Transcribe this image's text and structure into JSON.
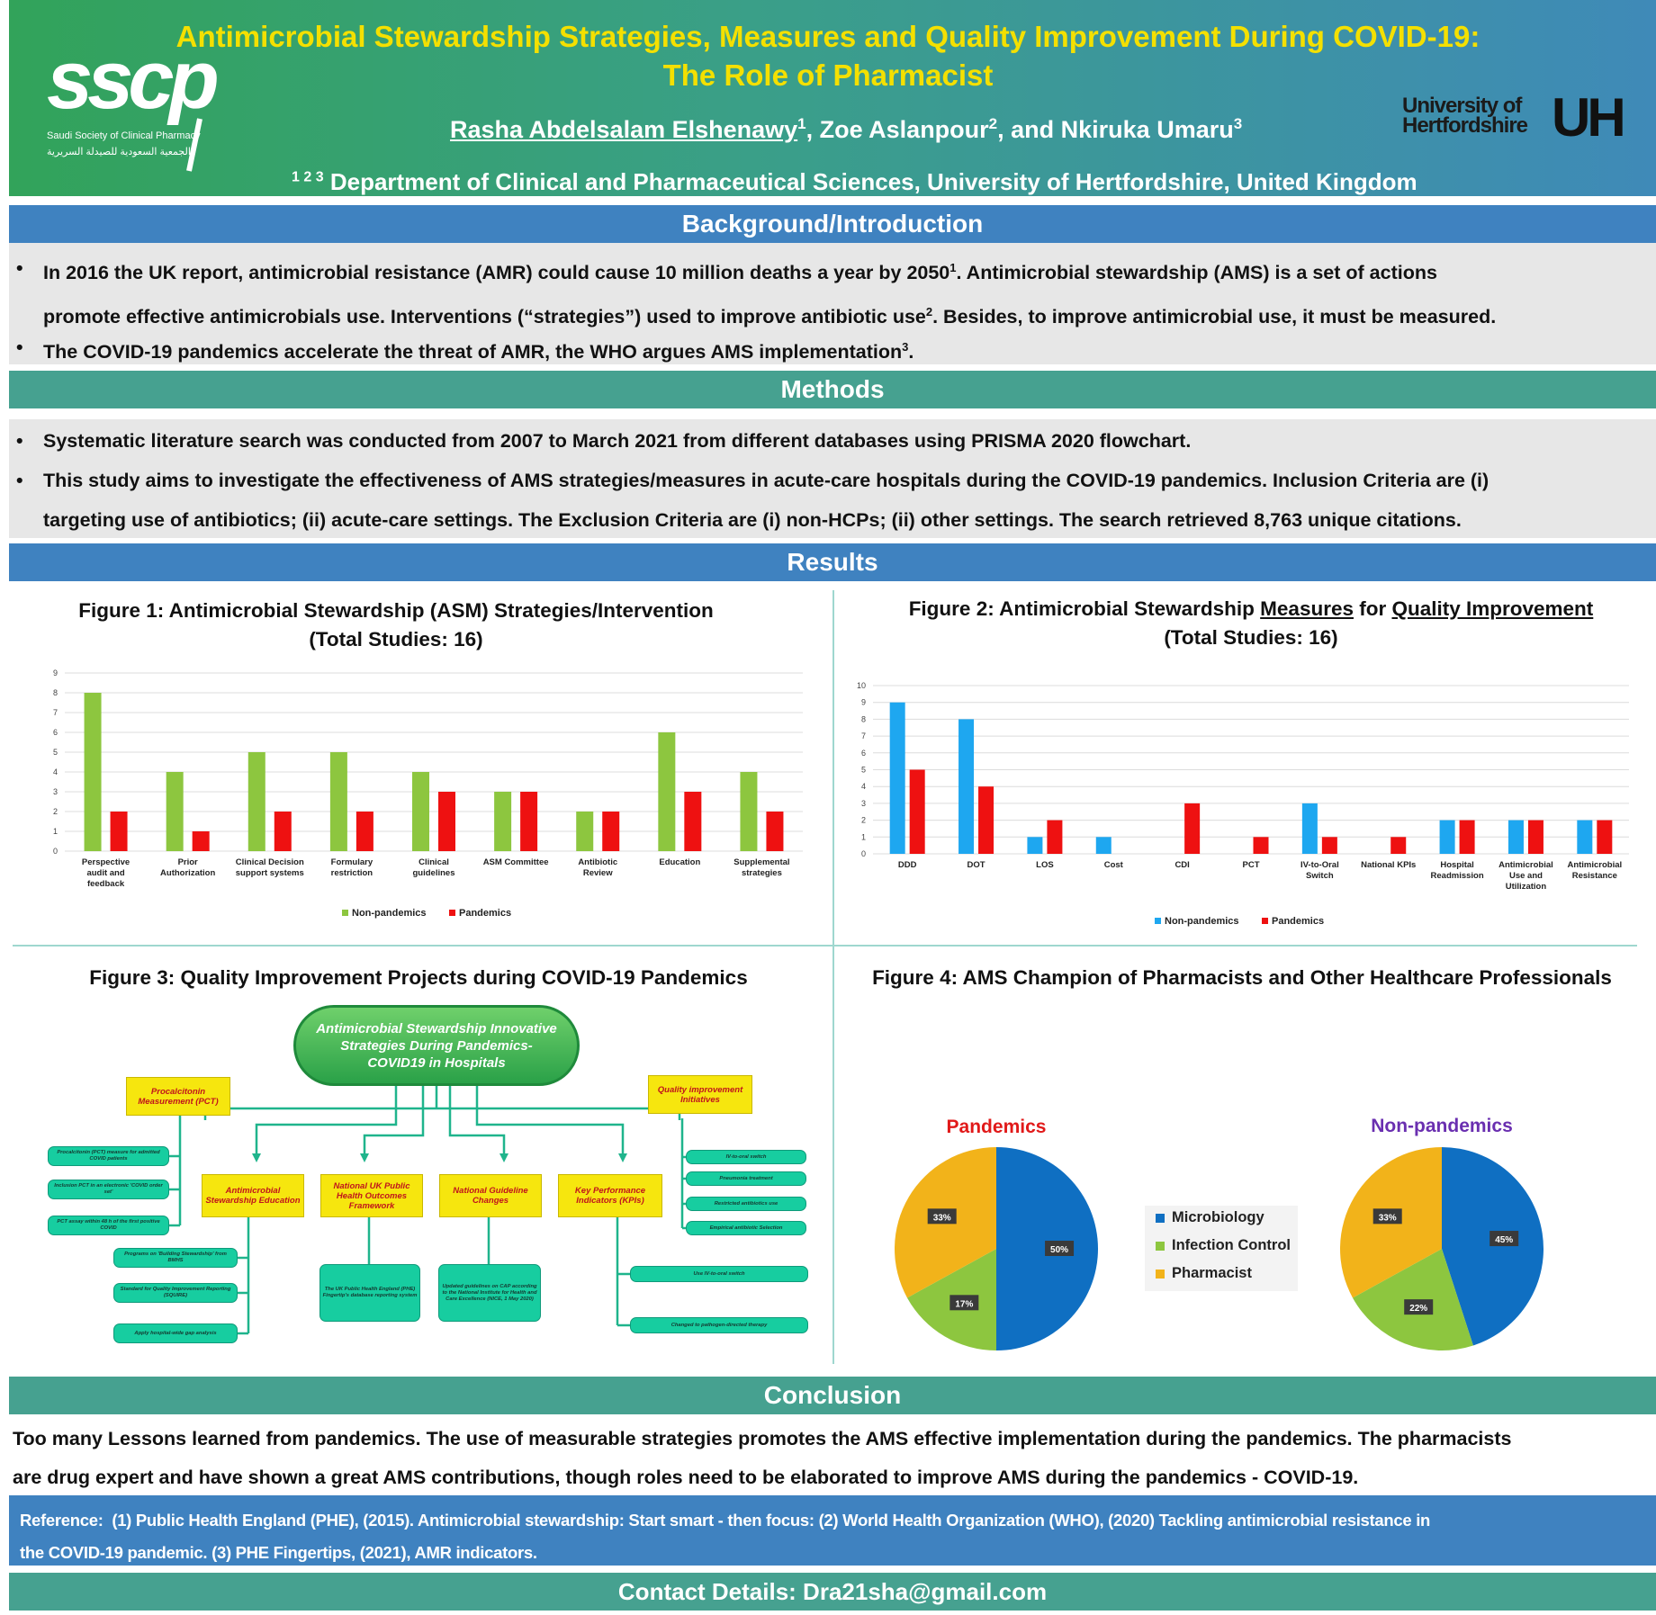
{
  "header": {
    "title_line1": "Antimicrobial Stewardship Strategies, Measures and Quality Improvement During COVID-19:",
    "title_line2": "The Role of Pharmacist",
    "author1": "Rasha Abdelsalam Elshenawy",
    "author1_sup": "1",
    "author2": "Zoe Aslanpour",
    "author2_sup": "2",
    "author3_prefix": ", and Nkiruka Umaru",
    "author3_sup": "3",
    "affiliation_sup": "1 2 3",
    "affiliation": "Department of Clinical and Pharmaceutical Sciences, University of Hertfordshire, United Kingdom",
    "logo_left_text": "sscp",
    "logo_left_sub": "Saudi Society of Clinical Pharmacy",
    "logo_left_arabic": "الجمعية السعودية للصيدلة السريرية",
    "logo_right_line1": "University of",
    "logo_right_line2": "Hertfordshire",
    "logo_right_mark": "UH",
    "colors": {
      "title": "#f4e000",
      "header_start": "#32a35a",
      "header_end": "#3f8ab8"
    }
  },
  "background": {
    "heading": "Background/Introduction",
    "bullets": [
      {
        "line1": "In 2016 the UK report, antimicrobial resistance (AMR) could cause 10 million deaths a year by 2050",
        "sup": "1",
        "line1_tail": ".  Antimicrobial stewardship (AMS) is a set of actions",
        "line2": "promote effective antimicrobials use. Interventions (“strategies”) used to improve antibiotic use",
        "sup2": "2",
        "line2_tail": ". Besides, to improve antimicrobial use, it must be measured."
      },
      {
        "line1": "The COVID-19 pandemics accelerate the threat of AMR, the WHO argues AMS implementation",
        "sup": "3",
        "line1_tail": "."
      }
    ]
  },
  "methods": {
    "heading": "Methods",
    "bullet1": "Systematic literature search was conducted from 2007 to March 2021 from different databases using PRISMA 2020 flowchart.",
    "bullet2_line1": "This study aims to investigate the effectiveness of AMS strategies/measures in acute-care hospitals during the COVID-19 pandemics. Inclusion Criteria are (i)",
    "bullet2_line2": "targeting use of antibiotics; (ii) acute-care settings. The Exclusion Criteria are (i) non-HCPs; (ii) other settings. The search retrieved 8,763 unique citations."
  },
  "results": {
    "heading": "Results",
    "fig1_title_line1": "Figure 1: Antimicrobial Stewardship (ASM) Strategies/Intervention",
    "fig1_title_line2": "(Total Studies: 16)",
    "fig2_title_pre": "Figure 2: Antimicrobial Stewardship ",
    "fig2_title_u1": "Measures",
    "fig2_title_mid": " for ",
    "fig2_title_u2": "Quality Improvement",
    "fig2_title_line2": "(Total Studies: 16)",
    "fig3_title": "Figure 3: Quality Improvement Projects during COVID-19 Pandemics",
    "fig4_title": "Figure 4: AMS Champion of Pharmacists and Other Healthcare Professionals"
  },
  "chart_data": [
    {
      "type": "bar",
      "categories": [
        [
          "Perspective",
          "audit and",
          "feedback"
        ],
        [
          "Prior",
          "Authorization"
        ],
        [
          "Clinical Decision",
          "support systems"
        ],
        [
          "Formulary",
          "restriction"
        ],
        [
          "Clinical",
          "guidelines"
        ],
        [
          "ASM Committee"
        ],
        [
          "Antibiotic",
          "Review"
        ],
        [
          "Education"
        ],
        [
          "Supplemental",
          "strategies"
        ]
      ],
      "series": [
        {
          "name": "Non-pandemics",
          "color": "#8dc63f",
          "values": [
            8,
            4,
            5,
            5,
            4,
            3,
            2,
            6,
            4
          ]
        },
        {
          "name": "Pandemics",
          "color": "#ee1111",
          "values": [
            2,
            1,
            2,
            2,
            3,
            3,
            2,
            3,
            2
          ]
        }
      ],
      "ylim": [
        0,
        9
      ],
      "yticks": [
        0,
        1,
        2,
        3,
        4,
        5,
        6,
        7,
        8,
        9
      ],
      "grid": true,
      "legend": "bottom"
    },
    {
      "type": "bar",
      "categories": [
        [
          "DDD"
        ],
        [
          "DOT"
        ],
        [
          "LOS"
        ],
        [
          "Cost"
        ],
        [
          "CDI"
        ],
        [
          "PCT"
        ],
        [
          "IV-to-Oral",
          "Switch"
        ],
        [
          "National KPIs"
        ],
        [
          "Hospital",
          "Readmission"
        ],
        [
          "Antimicrobial",
          "Use and",
          "Utilization"
        ],
        [
          "Antimicrobial",
          "Resistance"
        ]
      ],
      "series": [
        {
          "name": "Non-pandemics",
          "color": "#1ea7f0",
          "values": [
            9,
            8,
            1,
            1,
            0,
            0,
            3,
            0,
            2,
            2,
            2
          ]
        },
        {
          "name": "Pandemics",
          "color": "#ee1111",
          "values": [
            5,
            4,
            2,
            0,
            3,
            1,
            1,
            1,
            2,
            2,
            2
          ]
        }
      ],
      "ylim": [
        0,
        10
      ],
      "yticks": [
        0,
        1,
        2,
        3,
        4,
        5,
        6,
        7,
        8,
        9,
        10
      ],
      "grid": true,
      "legend": "bottom"
    },
    {
      "type": "pie",
      "title": "Pandemics",
      "title_color": "#e11919",
      "labels": [
        "Microbiology",
        "Infection Control",
        "Pharmacist"
      ],
      "colors": [
        "#0f6fc2",
        "#8dc63f",
        "#f2b31a"
      ],
      "values": [
        50,
        17,
        33
      ],
      "value_labels": [
        "50%",
        "17%",
        "33%"
      ]
    },
    {
      "type": "pie",
      "title": "Non-pandemics",
      "title_color": "#6a2fb0",
      "labels": [
        "Microbiology",
        "Infection Control",
        "Pharmacist"
      ],
      "colors": [
        "#0f6fc2",
        "#8dc63f",
        "#f2b31a"
      ],
      "values": [
        45,
        22,
        33
      ],
      "value_labels": [
        "45%",
        "22%",
        "33%"
      ]
    }
  ],
  "fig4_legend": [
    "Microbiology",
    "Infection Control",
    "Pharmacist"
  ],
  "mindmap": {
    "center": "Antimicrobial Stewardship Innovative Strategies During Pandemics- COVID19 in Hospitals",
    "pct": "Procalcitonin Measurement (PCT)",
    "qi": "Quality improvement Initiatives",
    "ams_edu": "Antimicrobial Stewardship Education",
    "phe": "National UK Public Health Outcomes Framework",
    "guideline": "National Guideline Changes",
    "kpi": "Key Performance Indicators (KPIs)",
    "pct_items": [
      "Procalcitonin (PCT) measure for admitted COVID patients",
      "Inclusion PCT in an electronic 'COVID order set'",
      "PCT assay within 48 h of the first positive COVID"
    ],
    "edu_items": [
      "Programs on 'Building Stewardship' from BMHS",
      "Standard for Quality Improvement Reporting (SQUIRE)",
      "Apply hospital-wide gap analysis"
    ],
    "qi_items": [
      "IV-to-oral switch",
      "Pneumonia treatment",
      "Restricted antibiotics use",
      "Empirical antibiotic Selection"
    ],
    "phe_item": "The UK Public Health England (PHE) Fingertip's database reporting system",
    "guideline_item": "Updated guidelines on CAP according to the National Institute for Health and Care Excellence (NICE, 1 May 2020)",
    "kpi_items": [
      "Use IV-to-oral switch",
      "Changed to pathogen-directed therapy"
    ]
  },
  "conclusion": {
    "heading": "Conclusion",
    "line1": "Too many Lessons learned from pandemics. The use of measurable strategies promotes the AMS effective implementation during the pandemics. The pharmacists",
    "line2": "are drug expert and have shown a great AMS contributions, though roles need to be elaborated to improve AMS during the pandemics - COVID-19."
  },
  "reference": {
    "label": "Reference:",
    "line1": "(1) Public Health England (PHE), (2015). Antimicrobial stewardship: Start smart - then focus: (2)  World Health Organization (WHO), (2020) Tackling antimicrobial resistance in",
    "line2": "the COVID-19 pandemic. (3) PHE Fingertips, (2021), AMR indicators."
  },
  "contact": {
    "text": "Contact Details: Dra21sha@gmail.com"
  }
}
